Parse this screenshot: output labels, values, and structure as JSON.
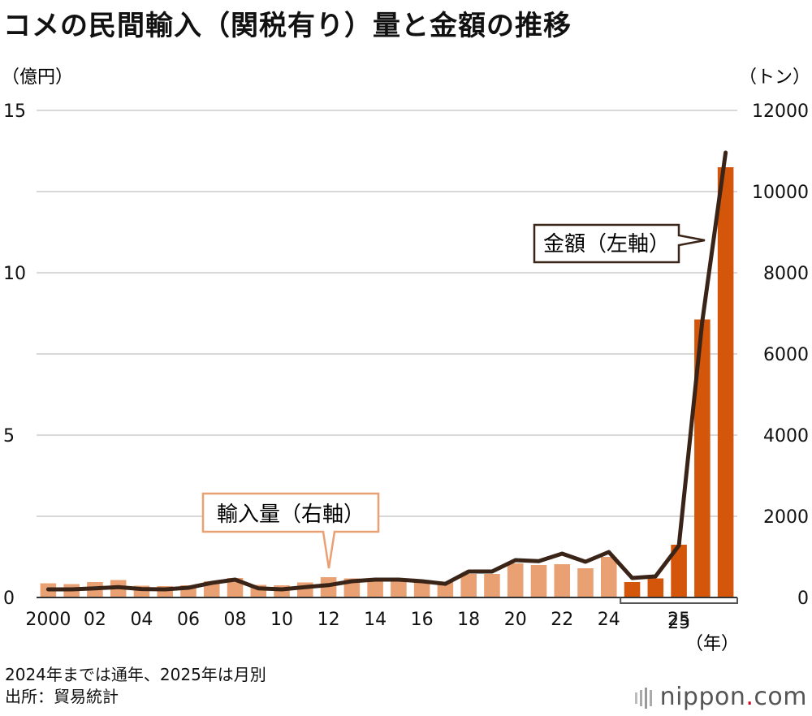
{
  "title": "コメの民間輸入（関税有り）量と金額の推移",
  "left_unit": "（億円）",
  "right_unit": "（トン）",
  "year_unit": "（年）",
  "notes": [
    "2024年までは通年、2025年は月別",
    "出所：貿易統計"
  ],
  "logo": {
    "main": "nippon",
    "dot": ".",
    "suffix": "com"
  },
  "colors": {
    "annual_bar": "#E9A073",
    "monthly_bar": "#D4560A",
    "line": "#3A2418",
    "grid": "#CCCCCC",
    "callout_amount_border": "#3A2418",
    "callout_volume_border": "#E9A073"
  },
  "chart_data": {
    "type": "bar+line",
    "title": "コメの民間輸入（関税有り）量と金額の推移",
    "categories": [
      "2000",
      "2001",
      "2002",
      "2003",
      "2004",
      "2005",
      "2006",
      "2007",
      "2008",
      "2009",
      "2010",
      "2011",
      "2012",
      "2013",
      "2014",
      "2015",
      "2016",
      "2017",
      "2018",
      "2019",
      "2020",
      "2021",
      "2022",
      "2023",
      "2024",
      "2025-1",
      "2025-2",
      "2025-3",
      "2025-4",
      "2025-5"
    ],
    "x_tick_labels": [
      "2000",
      "",
      "02",
      "",
      "04",
      "",
      "06",
      "",
      "08",
      "",
      "10",
      "",
      "12",
      "",
      "14",
      "",
      "16",
      "",
      "18",
      "",
      "20",
      "",
      "22",
      "",
      "24",
      "",
      "",
      "25",
      "",
      ""
    ],
    "series": [
      {
        "name": "輸入量",
        "axis": "right",
        "kind": "bar",
        "label": "輸入量（右軸）",
        "values": [
          350,
          330,
          380,
          430,
          290,
          280,
          300,
          400,
          480,
          310,
          300,
          370,
          500,
          470,
          470,
          470,
          400,
          380,
          580,
          580,
          840,
          800,
          820,
          720,
          1000,
          380,
          470,
          1300,
          6850,
          10600
        ]
      },
      {
        "name": "金額",
        "axis": "left",
        "kind": "line",
        "label": "金額（左軸）",
        "values": [
          0.25,
          0.25,
          0.28,
          0.32,
          0.26,
          0.25,
          0.3,
          0.45,
          0.55,
          0.28,
          0.25,
          0.32,
          0.38,
          0.5,
          0.55,
          0.55,
          0.5,
          0.42,
          0.8,
          0.8,
          1.15,
          1.12,
          1.35,
          1.1,
          1.4,
          0.6,
          0.65,
          1.6,
          8.5,
          13.7
        ]
      }
    ],
    "left_axis": {
      "range": [
        0,
        15
      ],
      "ticks": [
        "0",
        "5",
        "10",
        "15"
      ],
      "unit": "億円"
    },
    "right_axis": {
      "range": [
        0,
        12000
      ],
      "ticks": [
        "0",
        "2000",
        "4000",
        "6000",
        "8000",
        "10000",
        "12000"
      ],
      "unit": "トン"
    },
    "grid": true,
    "x_label": "年"
  }
}
